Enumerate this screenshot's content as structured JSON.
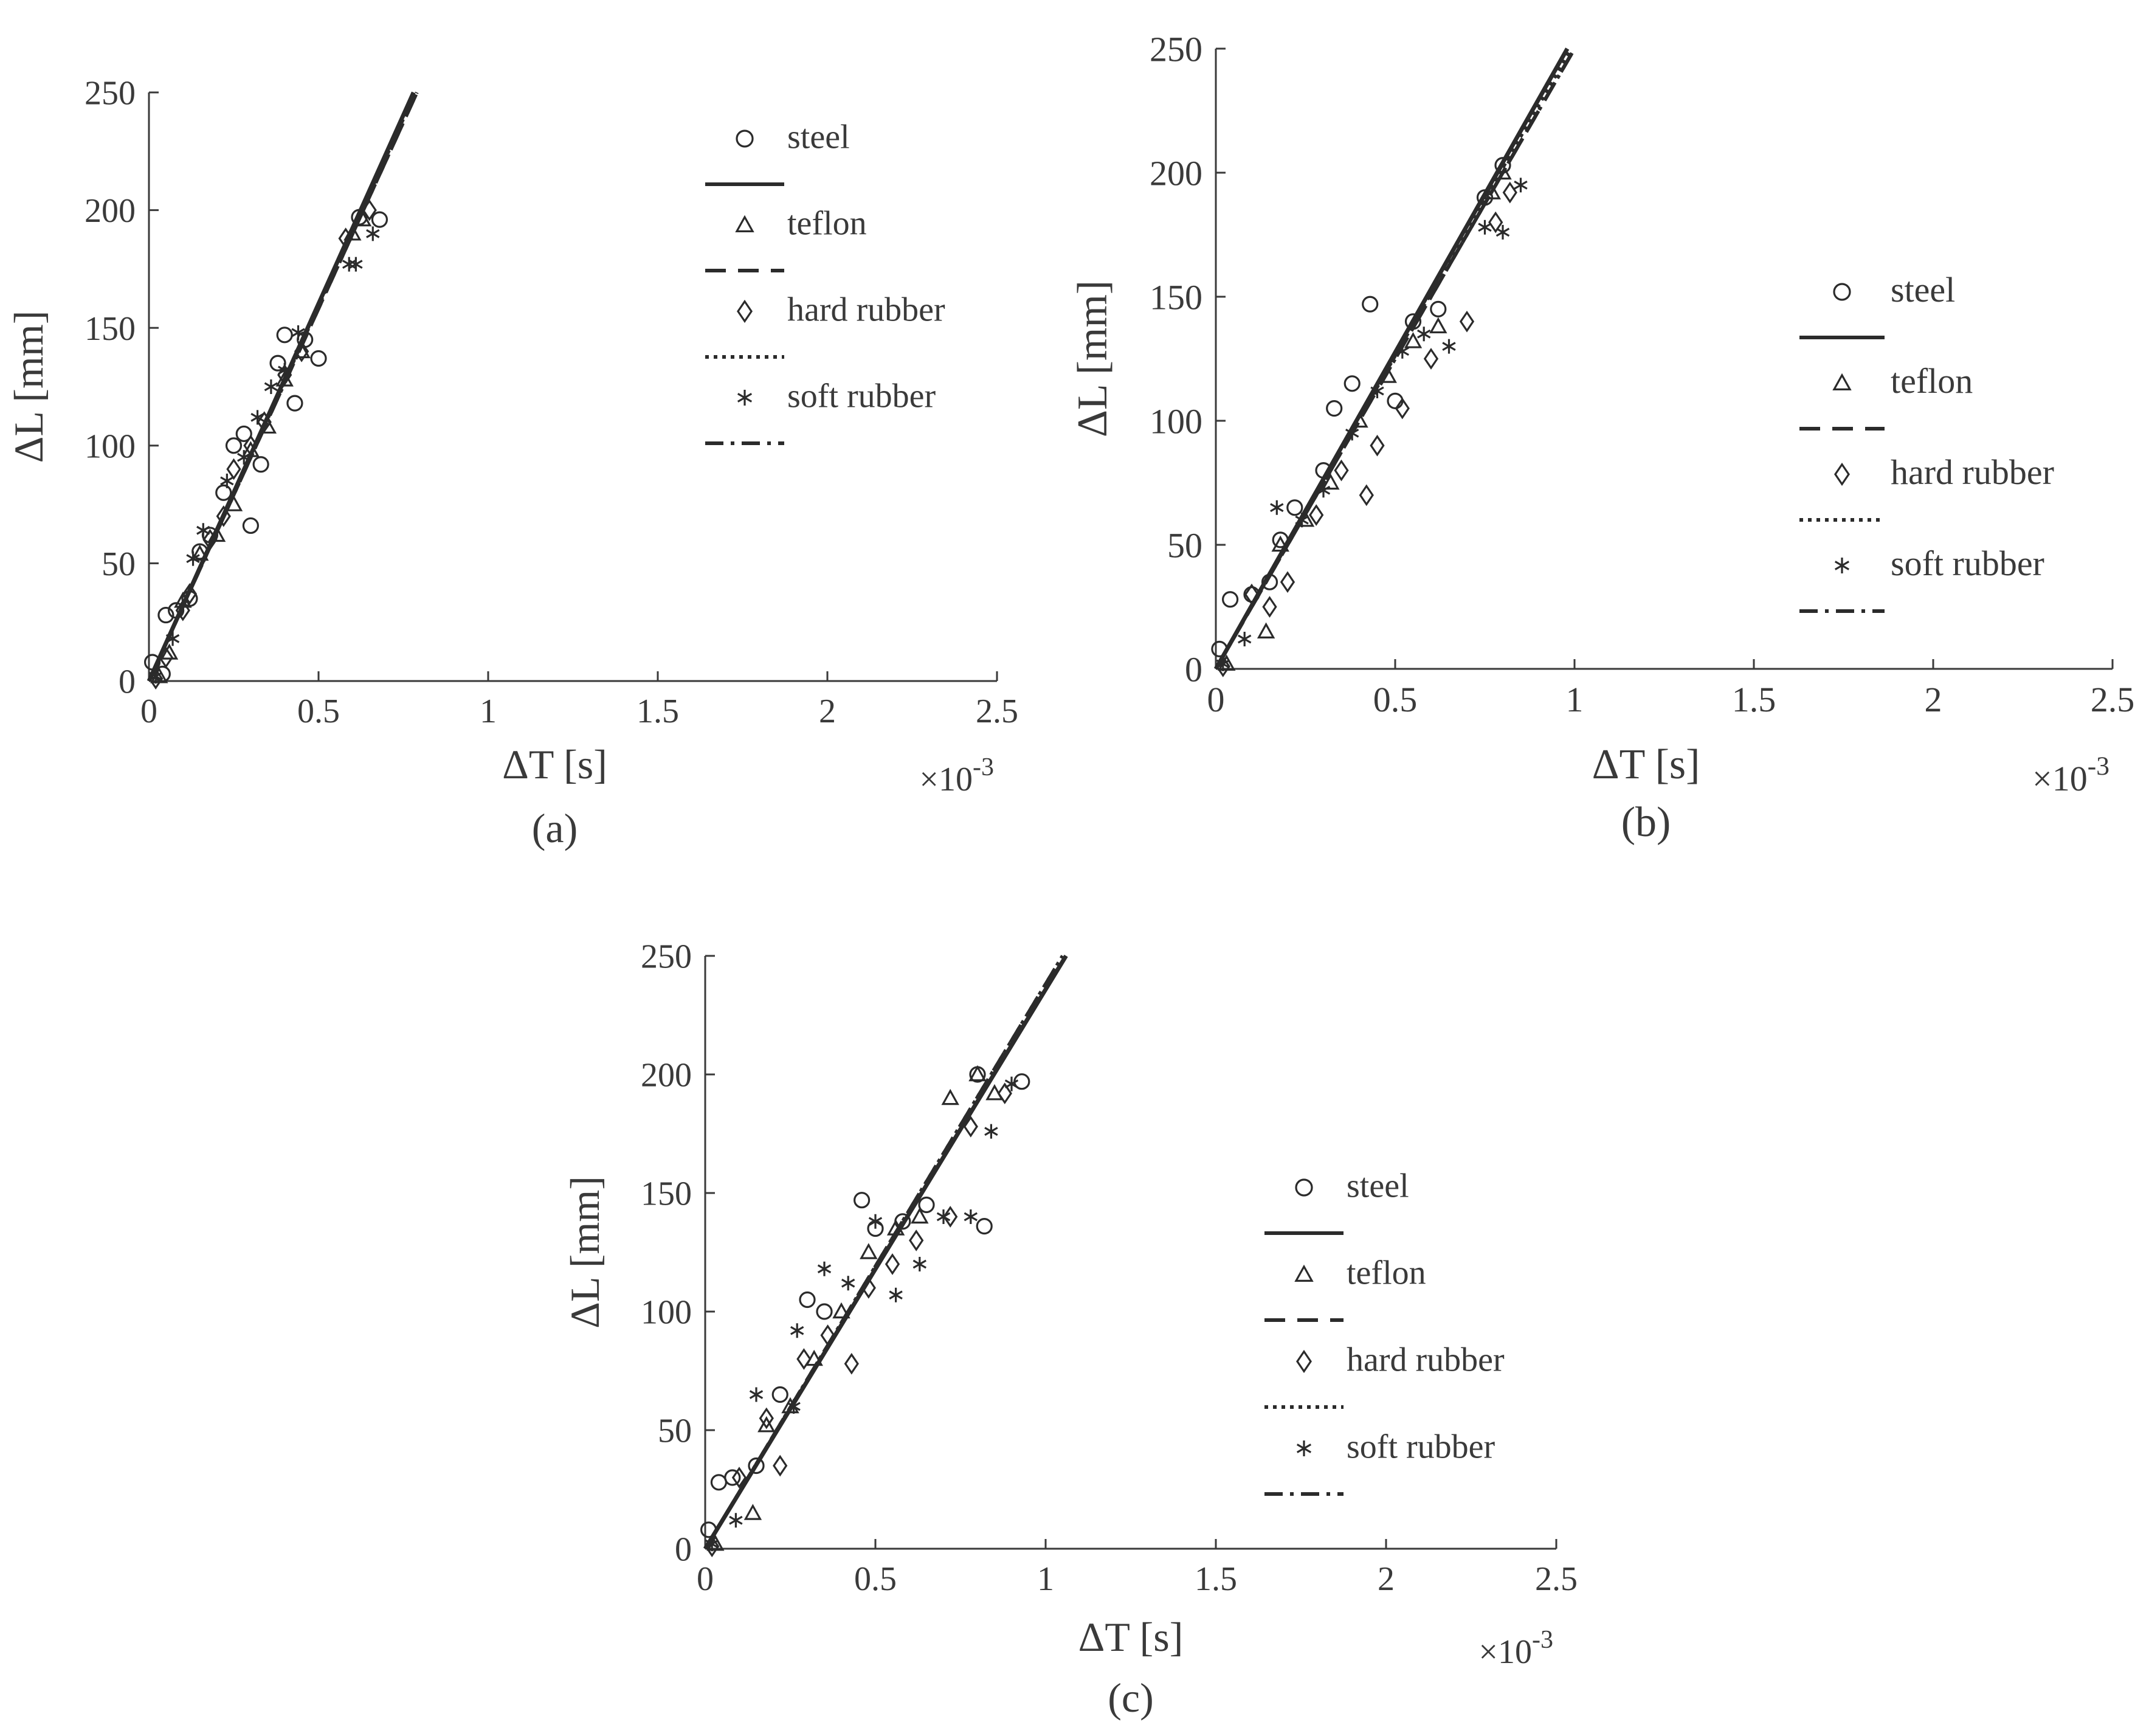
{
  "figure": {
    "panels": [
      "a",
      "b",
      "c"
    ]
  },
  "colors": {
    "ink": "#2b2b2b",
    "text": "#3a3a3a",
    "axis": "#3a3a3a",
    "background": "#ffffff"
  },
  "chart_data": [
    {
      "type": "scatter",
      "panel_label": "(a)",
      "xlabel": "ΔT [s]",
      "ylabel": "ΔL [mm]",
      "x_multiplier": "×10",
      "x_multiplier_exp": "-3",
      "xlim": [
        0,
        0.0025
      ],
      "ylim": [
        0,
        250
      ],
      "xticks": [
        0,
        0.0005,
        0.001,
        0.0015,
        0.002,
        0.0025
      ],
      "xtick_labels": [
        "0",
        "0.5",
        "1",
        "1.5",
        "2",
        "2.5"
      ],
      "yticks": [
        0,
        50,
        100,
        150,
        200,
        250
      ],
      "ytick_labels": [
        "0",
        "50",
        "100",
        "150",
        "200",
        "250"
      ],
      "grid": false,
      "legend_position": "top-right",
      "series": [
        {
          "name": "steel",
          "marker": "circle",
          "fit_line": "solid",
          "points": [
            [
              1e-05,
              8
            ],
            [
              4e-05,
              3
            ],
            [
              5e-05,
              28
            ],
            [
              8e-05,
              30
            ],
            [
              0.00012,
              35
            ],
            [
              0.00015,
              55
            ],
            [
              0.00018,
              62
            ],
            [
              0.00022,
              80
            ],
            [
              0.00025,
              100
            ],
            [
              0.00028,
              105
            ],
            [
              0.0003,
              66
            ],
            [
              0.00033,
              92
            ],
            [
              0.00038,
              135
            ],
            [
              0.0004,
              147
            ],
            [
              0.00043,
              118
            ],
            [
              0.00046,
              145
            ],
            [
              0.0005,
              137
            ],
            [
              0.00062,
              197
            ],
            [
              0.00068,
              196
            ]
          ],
          "fit": [
            [
              0,
              0
            ],
            [
              0.00078,
              250
            ]
          ]
        },
        {
          "name": "teflon",
          "marker": "triangle",
          "fit_line": "dashed",
          "points": [
            [
              3e-05,
              2
            ],
            [
              6e-05,
              12
            ],
            [
              0.0001,
              34
            ],
            [
              0.00015,
              54
            ],
            [
              0.0002,
              62
            ],
            [
              0.00025,
              75
            ],
            [
              0.0003,
              98
            ],
            [
              0.00035,
              108
            ],
            [
              0.0004,
              128
            ],
            [
              0.00045,
              140
            ],
            [
              0.0006,
              190
            ],
            [
              0.00063,
              196
            ]
          ],
          "fit": [
            [
              0,
              0
            ],
            [
              0.00079,
              250
            ]
          ]
        },
        {
          "name": "hard rubber",
          "marker": "diamond",
          "fit_line": "dotted",
          "points": [
            [
              2e-05,
              1
            ],
            [
              5e-05,
              10
            ],
            [
              0.0001,
              30
            ],
            [
              0.00012,
              37
            ],
            [
              0.00018,
              60
            ],
            [
              0.00022,
              70
            ],
            [
              0.00025,
              90
            ],
            [
              0.0003,
              100
            ],
            [
              0.00034,
              110
            ],
            [
              0.0004,
              130
            ],
            [
              0.00045,
              140
            ],
            [
              0.00058,
              188
            ],
            [
              0.00065,
              200
            ]
          ],
          "fit": [
            [
              0,
              0
            ],
            [
              0.000785,
              250
            ]
          ]
        },
        {
          "name": "soft rubber",
          "marker": "asterisk",
          "fit_line": "dash-dot",
          "points": [
            [
              2e-05,
              2
            ],
            [
              7e-05,
              18
            ],
            [
              0.00013,
              52
            ],
            [
              0.00016,
              64
            ],
            [
              0.00023,
              85
            ],
            [
              0.00028,
              95
            ],
            [
              0.00032,
              112
            ],
            [
              0.00036,
              125
            ],
            [
              0.0004,
              132
            ],
            [
              0.00044,
              148
            ],
            [
              0.00059,
              177
            ],
            [
              0.00061,
              177
            ],
            [
              0.00066,
              190
            ]
          ],
          "fit": [
            [
              0,
              0
            ],
            [
              0.00079,
              250
            ]
          ]
        }
      ]
    },
    {
      "type": "scatter",
      "panel_label": "(b)",
      "xlabel": "ΔT [s]",
      "ylabel": "ΔL [mm]",
      "x_multiplier": "×10",
      "x_multiplier_exp": "-3",
      "xlim": [
        0,
        0.0025
      ],
      "ylim": [
        0,
        250
      ],
      "xticks": [
        0,
        0.0005,
        0.001,
        0.0015,
        0.002,
        0.0025
      ],
      "xtick_labels": [
        "0",
        "0.5",
        "1",
        "1.5",
        "2",
        "2.5"
      ],
      "yticks": [
        0,
        50,
        100,
        150,
        200,
        250
      ],
      "ytick_labels": [
        "0",
        "50",
        "100",
        "150",
        "200",
        "250"
      ],
      "grid": false,
      "legend_position": "right",
      "series": [
        {
          "name": "steel",
          "marker": "circle",
          "fit_line": "solid",
          "points": [
            [
              1e-05,
              8
            ],
            [
              4e-05,
              28
            ],
            [
              0.0001,
              30
            ],
            [
              0.00015,
              35
            ],
            [
              0.00018,
              52
            ],
            [
              0.00022,
              65
            ],
            [
              0.0003,
              80
            ],
            [
              0.00033,
              105
            ],
            [
              0.00038,
              115
            ],
            [
              0.00043,
              147
            ],
            [
              0.0005,
              108
            ],
            [
              0.00055,
              140
            ],
            [
              0.00062,
              145
            ],
            [
              0.00075,
              190
            ],
            [
              0.0008,
              203
            ]
          ],
          "fit": [
            [
              0,
              0
            ],
            [
              0.00098,
              250
            ]
          ]
        },
        {
          "name": "teflon",
          "marker": "triangle",
          "fit_line": "dashed",
          "points": [
            [
              3e-05,
              2
            ],
            [
              0.00014,
              15
            ],
            [
              0.00018,
              50
            ],
            [
              0.00025,
              60
            ],
            [
              0.00032,
              75
            ],
            [
              0.0004,
              100
            ],
            [
              0.00048,
              118
            ],
            [
              0.00055,
              132
            ],
            [
              0.00062,
              138
            ],
            [
              0.00077,
              192
            ],
            [
              0.0008,
              200
            ]
          ],
          "fit": [
            [
              0,
              0
            ],
            [
              0.001,
              250
            ]
          ]
        },
        {
          "name": "hard rubber",
          "marker": "diamond",
          "fit_line": "dotted",
          "points": [
            [
              2e-05,
              1
            ],
            [
              0.0001,
              30
            ],
            [
              0.00015,
              25
            ],
            [
              0.0002,
              35
            ],
            [
              0.00028,
              62
            ],
            [
              0.00035,
              80
            ],
            [
              0.00042,
              70
            ],
            [
              0.00045,
              90
            ],
            [
              0.00052,
              105
            ],
            [
              0.0006,
              125
            ],
            [
              0.0007,
              140
            ],
            [
              0.00078,
              180
            ],
            [
              0.00082,
              192
            ]
          ],
          "fit": [
            [
              0,
              0
            ],
            [
              0.00099,
              250
            ]
          ]
        },
        {
          "name": "soft rubber",
          "marker": "asterisk",
          "fit_line": "dash-dot",
          "points": [
            [
              2e-05,
              2
            ],
            [
              8e-05,
              12
            ],
            [
              0.00017,
              65
            ],
            [
              0.00024,
              60
            ],
            [
              0.0003,
              72
            ],
            [
              0.00038,
              95
            ],
            [
              0.00045,
              112
            ],
            [
              0.00052,
              128
            ],
            [
              0.00058,
              135
            ],
            [
              0.00065,
              130
            ],
            [
              0.00075,
              178
            ],
            [
              0.0008,
              176
            ],
            [
              0.00085,
              195
            ]
          ],
          "fit": [
            [
              0,
              0
            ],
            [
              0.001,
              250
            ]
          ]
        }
      ]
    },
    {
      "type": "scatter",
      "panel_label": "(c)",
      "xlabel": "ΔT [s]",
      "ylabel": "ΔL [mm]",
      "x_multiplier": "×10",
      "x_multiplier_exp": "-3",
      "xlim": [
        0,
        0.0025
      ],
      "ylim": [
        0,
        250
      ],
      "xticks": [
        0,
        0.0005,
        0.001,
        0.0015,
        0.002,
        0.0025
      ],
      "xtick_labels": [
        "0",
        "0.5",
        "1",
        "1.5",
        "2",
        "2.5"
      ],
      "yticks": [
        0,
        50,
        100,
        150,
        200,
        250
      ],
      "ytick_labels": [
        "0",
        "50",
        "100",
        "150",
        "200",
        "250"
      ],
      "grid": false,
      "legend_position": "right",
      "series": [
        {
          "name": "steel",
          "marker": "circle",
          "fit_line": "solid",
          "points": [
            [
              1e-05,
              8
            ],
            [
              4e-05,
              28
            ],
            [
              8e-05,
              30
            ],
            [
              0.00015,
              35
            ],
            [
              0.00022,
              65
            ],
            [
              0.0003,
              105
            ],
            [
              0.00035,
              100
            ],
            [
              0.00046,
              147
            ],
            [
              0.0005,
              135
            ],
            [
              0.00058,
              138
            ],
            [
              0.00065,
              145
            ],
            [
              0.0008,
              200
            ],
            [
              0.00082,
              136
            ],
            [
              0.00093,
              197
            ]
          ],
          "fit": [
            [
              0,
              0
            ],
            [
              0.00106,
              250
            ]
          ]
        },
        {
          "name": "teflon",
          "marker": "triangle",
          "fit_line": "dashed",
          "points": [
            [
              3e-05,
              2
            ],
            [
              0.00014,
              15
            ],
            [
              0.00018,
              52
            ],
            [
              0.00025,
              60
            ],
            [
              0.00032,
              80
            ],
            [
              0.0004,
              100
            ],
            [
              0.00048,
              125
            ],
            [
              0.00056,
              135
            ],
            [
              0.00063,
              140
            ],
            [
              0.00072,
              190
            ],
            [
              0.0008,
              200
            ],
            [
              0.00085,
              192
            ]
          ],
          "fit": [
            [
              0,
              0
            ],
            [
              0.00105,
              250
            ]
          ]
        },
        {
          "name": "hard rubber",
          "marker": "diamond",
          "fit_line": "dotted",
          "points": [
            [
              2e-05,
              1
            ],
            [
              0.0001,
              30
            ],
            [
              0.00018,
              55
            ],
            [
              0.00022,
              35
            ],
            [
              0.00029,
              80
            ],
            [
              0.00036,
              90
            ],
            [
              0.00043,
              78
            ],
            [
              0.00048,
              110
            ],
            [
              0.00055,
              120
            ],
            [
              0.00062,
              130
            ],
            [
              0.00072,
              140
            ],
            [
              0.00078,
              178
            ],
            [
              0.00088,
              192
            ]
          ],
          "fit": [
            [
              0,
              0
            ],
            [
              0.00105,
              250
            ]
          ]
        },
        {
          "name": "soft rubber",
          "marker": "asterisk",
          "fit_line": "dash-dot",
          "points": [
            [
              2e-05,
              2
            ],
            [
              9e-05,
              12
            ],
            [
              0.00015,
              65
            ],
            [
              0.00026,
              60
            ],
            [
              0.00027,
              92
            ],
            [
              0.00035,
              118
            ],
            [
              0.00042,
              112
            ],
            [
              0.0005,
              138
            ],
            [
              0.00056,
              107
            ],
            [
              0.00063,
              120
            ],
            [
              0.0007,
              140
            ],
            [
              0.00078,
              140
            ],
            [
              0.00084,
              176
            ],
            [
              0.0009,
              196
            ]
          ],
          "fit": [
            [
              0,
              0
            ],
            [
              0.00106,
              250
            ]
          ]
        }
      ]
    }
  ]
}
